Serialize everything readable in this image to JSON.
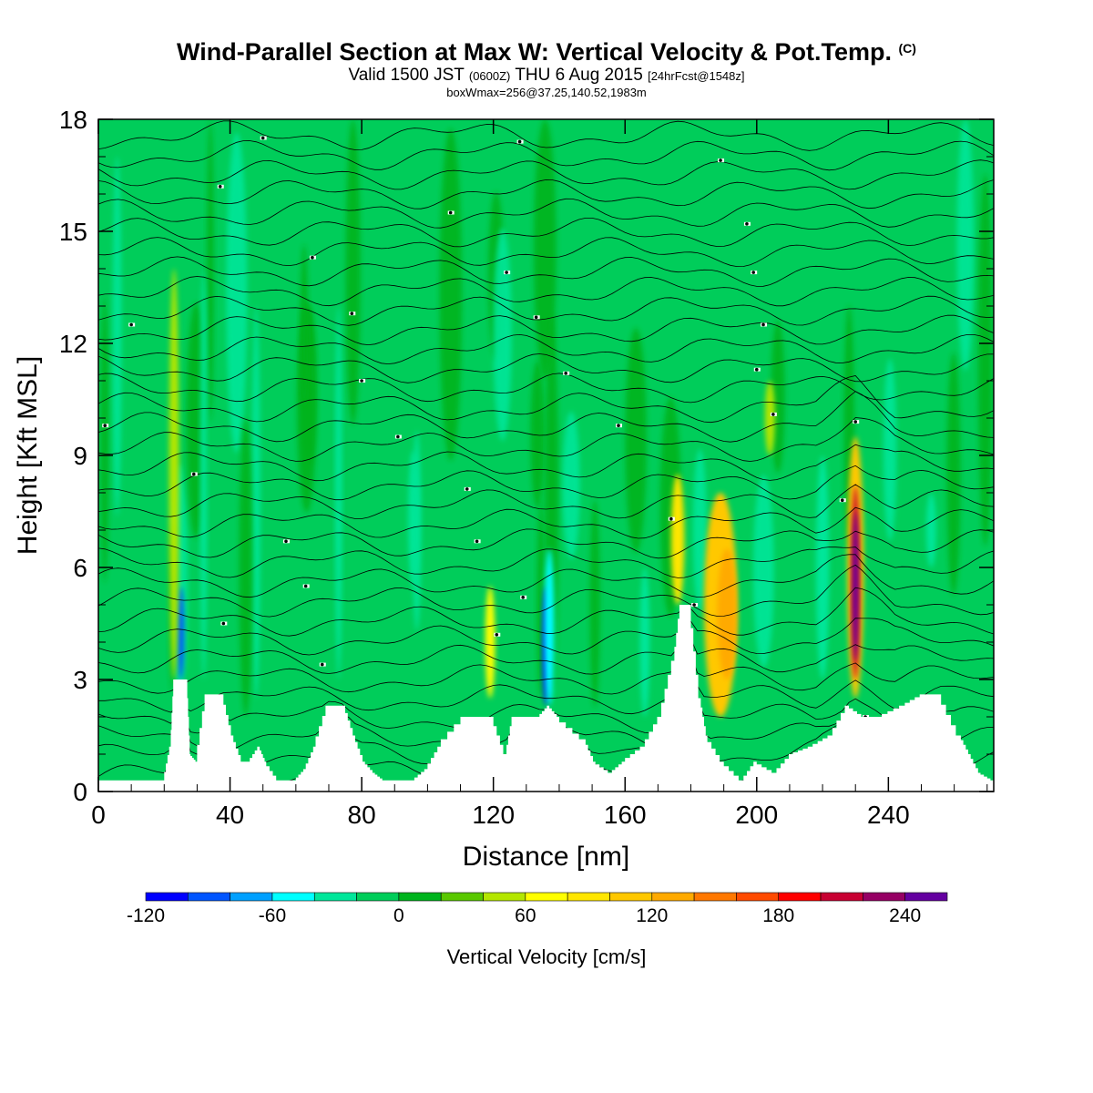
{
  "chart_data": {
    "type": "heatmap",
    "title": "Wind-Parallel Section at Max W: Vertical Velocity & Pot.Temp.",
    "title_mark": "(C)",
    "subtitle_main_a": "Valid 1500 JST",
    "subtitle_small_a": "(0600Z)",
    "subtitle_main_b": "THU 6 Aug 2015",
    "subtitle_small_b": "[24hrFcst@1548z]",
    "subtitle2": "boxWmax=256@37.25,140.52,1983m",
    "xlabel": "Distance [nm]",
    "ylabel": "Height [Kft MSL]",
    "xlim": [
      0,
      272
    ],
    "ylim": [
      0,
      18
    ],
    "xticks": [
      "0",
      "40",
      "80",
      "120",
      "160",
      "200",
      "240"
    ],
    "yticks": [
      "0",
      "3",
      "6",
      "9",
      "12",
      "15",
      "18"
    ],
    "colorbar_label": "Vertical Velocity [cm/s]",
    "colorbar_ticks": [
      "-120",
      "-60",
      "0",
      "60",
      "120",
      "180",
      "240"
    ],
    "colorbar_levels": [
      -120,
      -100,
      -80,
      -60,
      -40,
      -20,
      0,
      20,
      40,
      60,
      80,
      100,
      120,
      140,
      160,
      180,
      200,
      220,
      240,
      260
    ],
    "colorbar_colors": [
      "#0000ff",
      "#0055ff",
      "#00a0ff",
      "#00ffff",
      "#00e69a",
      "#00cd5a",
      "#00b41e",
      "#5ac800",
      "#b4e600",
      "#ffff00",
      "#ffe600",
      "#ffc800",
      "#ffaa00",
      "#ff7800",
      "#ff4b00",
      "#ff0000",
      "#c80032",
      "#960064",
      "#6400a0"
    ],
    "background_color": "#00cd5a",
    "terrain_color": "#ffffff",
    "contour_color": "#000000",
    "updrafts": [
      {
        "x": 23,
        "ybot": 3,
        "ytop": 14,
        "w": 3,
        "value": 50
      },
      {
        "x": 176,
        "ybot": 5,
        "ytop": 8.5,
        "w": 4,
        "value": 80
      },
      {
        "x": 189,
        "ybot": 2,
        "ytop": 8,
        "w": 10,
        "value": 100
      },
      {
        "x": 191,
        "ybot": 3,
        "ytop": 6.5,
        "w": 6,
        "value": 125
      },
      {
        "x": 230,
        "ybot": 2.5,
        "ytop": 9.5,
        "w": 5,
        "value": 100
      },
      {
        "x": 230,
        "ybot": 3,
        "ytop": 8.2,
        "w": 2.5,
        "value": 210
      },
      {
        "x": 230,
        "ybot": 3.5,
        "ytop": 7.5,
        "w": 1,
        "value": 245
      },
      {
        "x": 119,
        "ybot": 2.5,
        "ytop": 5.5,
        "w": 3,
        "value": 60
      },
      {
        "x": 204,
        "ybot": 9,
        "ytop": 11,
        "w": 3,
        "value": 40
      }
    ],
    "downdrafts": [
      {
        "x": 25,
        "ybot": 3,
        "ytop": 5.5,
        "w": 2,
        "value": -90
      },
      {
        "x": 32,
        "ybot": 3,
        "ytop": 14,
        "w": 2,
        "value": -40
      },
      {
        "x": 73,
        "ybot": 3,
        "ytop": 13,
        "w": 2,
        "value": -40
      },
      {
        "x": 136,
        "ybot": 2.3,
        "ytop": 5.5,
        "w": 2,
        "value": -110
      },
      {
        "x": 137,
        "ybot": 2.3,
        "ytop": 6.5,
        "w": 3,
        "value": -45
      },
      {
        "x": 166,
        "ybot": 2,
        "ytop": 6,
        "w": 3,
        "value": -30
      },
      {
        "x": 220,
        "ybot": 3,
        "ytop": 9,
        "w": 4,
        "value": -25
      },
      {
        "x": 253,
        "ybot": 6,
        "ytop": 8,
        "w": 3,
        "value": -40
      }
    ],
    "terrain": [
      [
        0,
        0.3
      ],
      [
        20,
        0.3
      ],
      [
        22,
        1.2
      ],
      [
        23,
        3
      ],
      [
        27,
        3
      ],
      [
        28,
        1
      ],
      [
        30,
        0.8
      ],
      [
        33,
        2.6
      ],
      [
        38,
        2.6
      ],
      [
        41,
        1.5
      ],
      [
        44,
        0.8
      ],
      [
        46,
        0.8
      ],
      [
        49,
        1.2
      ],
      [
        51,
        0.8
      ],
      [
        55,
        0.3
      ],
      [
        60,
        0.3
      ],
      [
        63,
        0.6
      ],
      [
        66,
        1.2
      ],
      [
        70,
        2.3
      ],
      [
        75,
        2.3
      ],
      [
        78,
        1.5
      ],
      [
        81,
        0.8
      ],
      [
        84,
        0.5
      ],
      [
        87,
        0.3
      ],
      [
        96,
        0.3
      ],
      [
        100,
        0.6
      ],
      [
        104,
        1.2
      ],
      [
        112,
        2
      ],
      [
        120,
        2
      ],
      [
        124,
        1
      ],
      [
        126,
        2
      ],
      [
        134,
        2
      ],
      [
        137,
        2.3
      ],
      [
        140,
        2
      ],
      [
        148,
        1.4
      ],
      [
        151,
        0.8
      ],
      [
        156,
        0.5
      ],
      [
        160,
        0.8
      ],
      [
        166,
        1.2
      ],
      [
        171,
        2
      ],
      [
        175,
        3.5
      ],
      [
        177,
        5
      ],
      [
        180,
        5
      ],
      [
        183,
        2.5
      ],
      [
        185,
        1.5
      ],
      [
        190,
        0.8
      ],
      [
        196,
        0.3
      ],
      [
        200,
        0.8
      ],
      [
        206,
        0.5
      ],
      [
        211,
        1
      ],
      [
        217,
        1.2
      ],
      [
        223,
        1.5
      ],
      [
        228,
        2.3
      ],
      [
        233,
        2
      ],
      [
        238,
        2
      ],
      [
        245,
        2.3
      ],
      [
        251,
        2.6
      ],
      [
        256,
        2.6
      ],
      [
        262,
        1.5
      ],
      [
        265,
        1
      ],
      [
        268,
        0.5
      ],
      [
        272,
        0.3
      ]
    ],
    "pt_labels": [
      [
        2,
        9.8
      ],
      [
        10,
        12.5
      ],
      [
        29,
        8.5
      ],
      [
        37,
        16.2
      ],
      [
        50,
        17.5
      ],
      [
        65,
        14.3
      ],
      [
        77,
        12.8
      ],
      [
        80,
        11
      ],
      [
        57,
        6.7
      ],
      [
        63,
        5.5
      ],
      [
        38,
        4.5
      ],
      [
        68,
        3.4
      ],
      [
        91,
        9.5
      ],
      [
        107,
        15.5
      ],
      [
        112,
        8.1
      ],
      [
        115,
        6.7
      ],
      [
        121,
        4.2
      ],
      [
        128,
        17.4
      ],
      [
        124,
        13.9
      ],
      [
        129,
        5.2
      ],
      [
        142,
        11.2
      ],
      [
        133,
        12.7
      ],
      [
        158,
        9.8
      ],
      [
        174,
        7.3
      ],
      [
        181,
        5
      ],
      [
        189,
        16.9
      ],
      [
        197,
        15.2
      ],
      [
        199,
        13.9
      ],
      [
        202,
        12.5
      ],
      [
        200,
        11.3
      ],
      [
        205,
        10.1
      ],
      [
        230,
        9.9
      ],
      [
        226,
        7.8
      ],
      [
        233,
        2
      ]
    ]
  }
}
